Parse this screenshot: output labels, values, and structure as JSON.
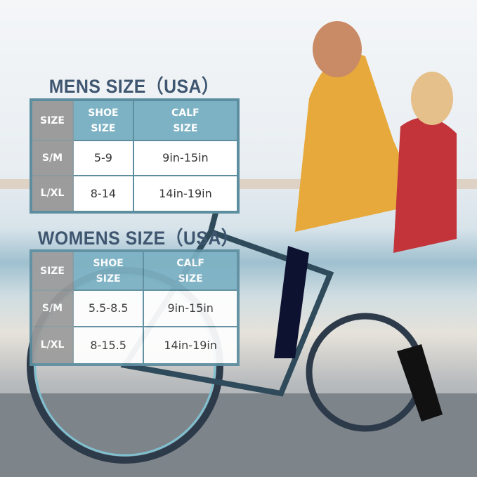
{
  "mens": {
    "title": "MENS SIZE（USA）",
    "headers": [
      "SIZE",
      "SHOE\nSIZE",
      "CALF\nSIZE"
    ],
    "header_lines": {
      "shoe": [
        "SHOE",
        "SIZE"
      ],
      "calf": [
        "CALF",
        "SIZE"
      ]
    },
    "rows": [
      {
        "size": "S/M",
        "shoe": "5-9",
        "calf": "9in-15in"
      },
      {
        "size": "L/XL",
        "shoe": "8-14",
        "calf": "14in-19in"
      }
    ]
  },
  "womens": {
    "title": "WOMENS SIZE（USA）",
    "header_lines": {
      "size": "SIZE",
      "shoe": [
        "SHOE",
        "SIZE"
      ],
      "calf": [
        "CALF",
        "SIZE"
      ]
    },
    "rows": [
      {
        "size": "S/M",
        "shoe": "5.5-8.5",
        "calf": "9in-15in"
      },
      {
        "size": "L/XL",
        "shoe": "8-15.5",
        "calf": "14in-19in"
      }
    ]
  },
  "colors": {
    "title": "#3f5670",
    "border": "#5d8ea0",
    "header": "#7db2c4",
    "size_column": "#9c9c9c"
  }
}
